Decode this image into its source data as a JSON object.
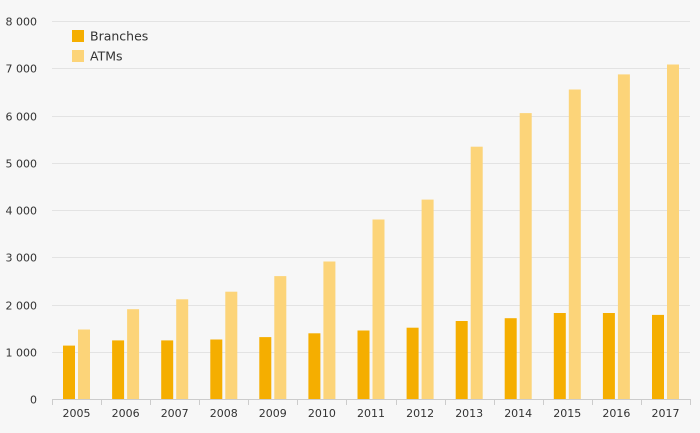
{
  "chart_data": {
    "type": "bar",
    "categories": [
      "2005",
      "2006",
      "2007",
      "2008",
      "2009",
      "2010",
      "2011",
      "2012",
      "2013",
      "2014",
      "2015",
      "2016",
      "2017"
    ],
    "series": [
      {
        "name": "Branches",
        "color": "#f5ae00",
        "values": [
          1130,
          1240,
          1240,
          1260,
          1310,
          1390,
          1450,
          1510,
          1650,
          1710,
          1820,
          1820,
          1780
        ]
      },
      {
        "name": "ATMs",
        "color": "#fcd479",
        "values": [
          1470,
          1900,
          2110,
          2270,
          2600,
          2910,
          3800,
          4220,
          5340,
          6050,
          6550,
          6870,
          7080
        ]
      }
    ],
    "yticks": [
      "0",
      "1 000",
      "2 000",
      "3 000",
      "4 000",
      "5 000",
      "6 000",
      "7 000",
      "8 000"
    ],
    "ylim": [
      0,
      8000
    ],
    "grid": true,
    "legend_position": "top-left",
    "colors": {
      "background": "#f7f7f7",
      "grid": "#e3e3e3",
      "text": "#333333"
    }
  }
}
